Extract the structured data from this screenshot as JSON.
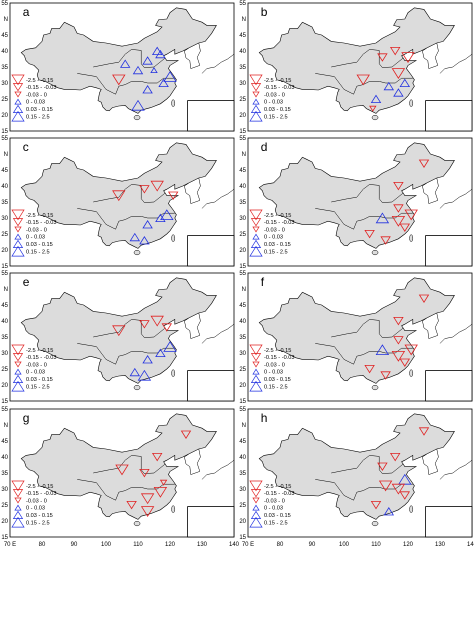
{
  "panels": [
    {
      "label": "a",
      "sites": [
        [
          116,
          40,
          4
        ],
        [
          117,
          39,
          4
        ],
        [
          113,
          37,
          4
        ],
        [
          106,
          36,
          4
        ],
        [
          110,
          34,
          4
        ],
        [
          115,
          34,
          3
        ],
        [
          120,
          32,
          5
        ],
        [
          118,
          30,
          4
        ],
        [
          113,
          28,
          4
        ],
        [
          110,
          23,
          5
        ],
        [
          104,
          31,
          0
        ]
      ]
    },
    {
      "label": "b",
      "sites": [
        [
          116,
          40,
          1
        ],
        [
          120,
          38,
          0
        ],
        [
          112,
          38,
          1
        ],
        [
          106,
          31,
          0
        ],
        [
          117,
          33,
          0
        ],
        [
          119,
          30,
          4
        ],
        [
          114,
          29,
          4
        ],
        [
          117,
          27,
          4
        ],
        [
          110,
          25,
          4
        ],
        [
          109,
          22,
          2
        ]
      ]
    },
    {
      "label": "c",
      "sites": [
        [
          116,
          40,
          0
        ],
        [
          112,
          39,
          1
        ],
        [
          104,
          37,
          0
        ],
        [
          121,
          37,
          1
        ],
        [
          119,
          31,
          5
        ],
        [
          117,
          30,
          4
        ],
        [
          113,
          28,
          4
        ],
        [
          109,
          24,
          4
        ],
        [
          112,
          23,
          4
        ]
      ]
    },
    {
      "label": "d",
      "sites": [
        [
          125,
          47,
          1
        ],
        [
          117,
          40,
          1
        ],
        [
          121,
          31,
          0
        ],
        [
          117,
          33,
          1
        ],
        [
          112,
          30,
          5
        ],
        [
          117,
          29,
          0
        ],
        [
          119,
          27,
          1
        ],
        [
          108,
          25,
          1
        ],
        [
          113,
          23,
          1
        ]
      ]
    },
    {
      "label": "e",
      "sites": [
        [
          116,
          40,
          0
        ],
        [
          112,
          39,
          1
        ],
        [
          104,
          37,
          0
        ],
        [
          119,
          38,
          1
        ],
        [
          120,
          32,
          5
        ],
        [
          117,
          30,
          4
        ],
        [
          113,
          28,
          4
        ],
        [
          109,
          24,
          4
        ],
        [
          112,
          23,
          5
        ]
      ]
    },
    {
      "label": "f",
      "sites": [
        [
          125,
          47,
          1
        ],
        [
          117,
          40,
          1
        ],
        [
          121,
          31,
          0
        ],
        [
          117,
          34,
          1
        ],
        [
          112,
          31,
          5
        ],
        [
          117,
          29,
          0
        ],
        [
          119,
          27,
          1
        ],
        [
          108,
          25,
          1
        ],
        [
          113,
          23,
          1
        ]
      ]
    },
    {
      "label": "g",
      "sites": [
        [
          125,
          47,
          1
        ],
        [
          116,
          40,
          1
        ],
        [
          105,
          36,
          0
        ],
        [
          112,
          35,
          1
        ],
        [
          118,
          32,
          2
        ],
        [
          117,
          29,
          0
        ],
        [
          113,
          27,
          0
        ],
        [
          108,
          25,
          1
        ],
        [
          113,
          23,
          0
        ]
      ]
    },
    {
      "label": "h",
      "sites": [
        [
          125,
          48,
          1
        ],
        [
          116,
          40,
          1
        ],
        [
          112,
          37,
          1
        ],
        [
          119,
          33,
          5
        ],
        [
          113,
          31,
          0
        ],
        [
          117,
          30,
          0
        ],
        [
          119,
          28,
          1
        ],
        [
          110,
          25,
          1
        ],
        [
          114,
          23,
          4
        ]
      ]
    }
  ],
  "legend": [
    "-2.5 - -0.15",
    "-0.15 - -0.03",
    "-0.03 - 0",
    "0 - 0.03",
    "0.03 - 0.15",
    "0.15 - 2.5"
  ],
  "lat_ticks": [
    "55",
    "N",
    "45",
    "40",
    "35",
    "30",
    "25",
    "20",
    "15"
  ],
  "lon_ticks": [
    "70 E",
    "80",
    "90",
    "100",
    "110",
    "120",
    "130",
    "140"
  ]
}
